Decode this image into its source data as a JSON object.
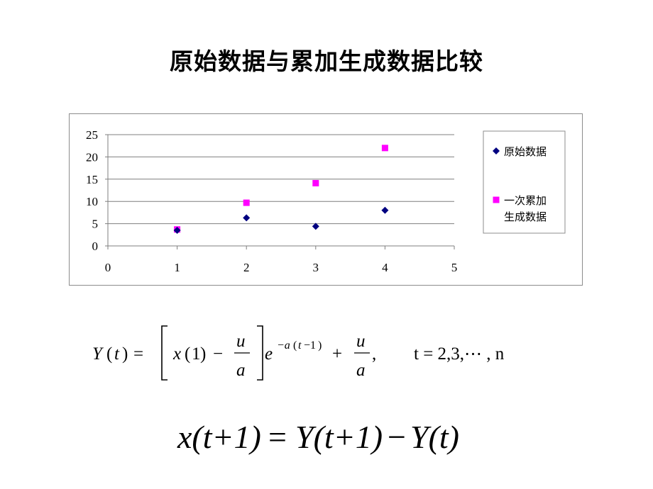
{
  "title": "原始数据与累加生成数据比较",
  "chart_data": {
    "type": "scatter",
    "xlim": [
      0,
      5
    ],
    "ylim": [
      0,
      25
    ],
    "x_ticks": [
      "0",
      "1",
      "2",
      "3",
      "4",
      "5"
    ],
    "y_ticks": [
      "0",
      "5",
      "10",
      "15",
      "20",
      "25"
    ],
    "grid": "horizontal",
    "legend_position": "right",
    "series": [
      {
        "name": "原始数据",
        "marker": "diamond",
        "color": "#000080",
        "points": [
          [
            1,
            3.5
          ],
          [
            2,
            6.3
          ],
          [
            3,
            4.4
          ],
          [
            4,
            8.0
          ]
        ]
      },
      {
        "name": "一次累加生成数据",
        "legend_lines": [
          "一次累加",
          "生成数据"
        ],
        "marker": "square",
        "color": "#ff00ff",
        "points": [
          [
            1,
            3.7
          ],
          [
            2,
            9.7
          ],
          [
            3,
            14.1
          ],
          [
            4,
            22.0
          ]
        ]
      }
    ]
  },
  "equations": {
    "eq1": {
      "Y": "Y",
      "t": "t",
      "x": "x",
      "one": "1",
      "u": "u",
      "a": "a",
      "e": "e",
      "exp_a": "−a",
      "exp_t": "t",
      "exp_minus1": "−1",
      "comma": ",",
      "t_range": "t = 2,3,⋯ , n"
    },
    "eq2": {
      "lhs": "x(t+1)",
      "eq": "=",
      "rhs1": "Y(t+1)",
      "minus": "−",
      "rhs2": "Y(t)"
    }
  }
}
